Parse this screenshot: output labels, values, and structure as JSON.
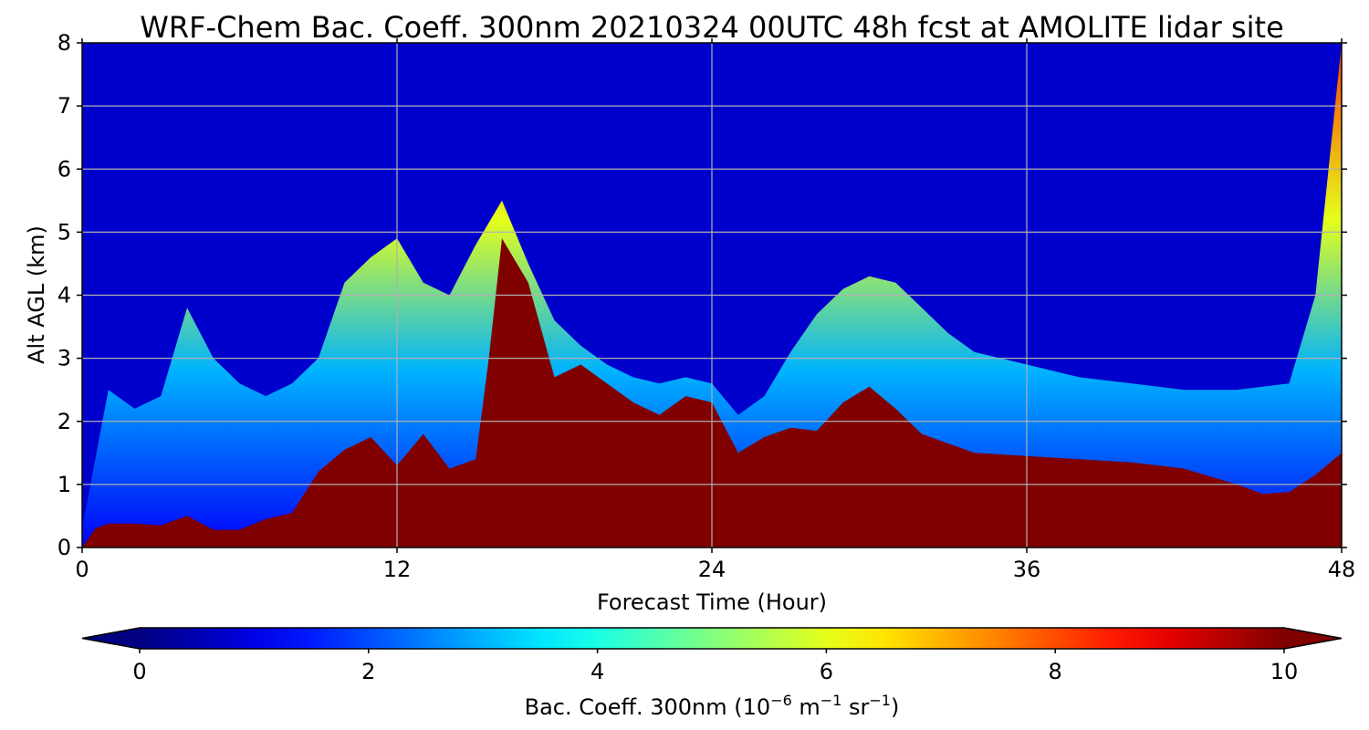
{
  "chart_data": {
    "type": "heatmap",
    "title": "WRF-Chem Bac. Coeff. 300nm  20210324 00UTC 48h fcst at AMOLITE lidar site",
    "xlabel": "Forecast Time (Hour)",
    "ylabel": "Alt AGL (km)",
    "xlim": [
      0,
      48
    ],
    "ylim": [
      0,
      8
    ],
    "x_ticks": [
      0,
      12,
      24,
      36,
      48
    ],
    "y_ticks": [
      0,
      1,
      2,
      3,
      4,
      5,
      6,
      7,
      8
    ],
    "grid": true,
    "colormap": "jet",
    "colorbar": {
      "orientation": "horizontal",
      "label_main": "Bac. Coeff. 300nm  (10",
      "label_exp1": "−6",
      "label_mid": " m",
      "label_exp2": "−1",
      "label_mid2": " sr",
      "label_exp3": "−1",
      "label_end": ")",
      "range": [
        0,
        10
      ],
      "ticks": [
        0,
        2,
        4,
        6,
        8,
        10
      ],
      "extend": "both"
    },
    "saturated_layer_top_km": [
      [
        0,
        0
      ],
      [
        0.5,
        0.3
      ],
      [
        1,
        0.38
      ],
      [
        2,
        0.38
      ],
      [
        3,
        0.35
      ],
      [
        4,
        0.5
      ],
      [
        5,
        0.28
      ],
      [
        6,
        0.28
      ],
      [
        7,
        0.45
      ],
      [
        8,
        0.55
      ],
      [
        9,
        1.2
      ],
      [
        10,
        1.55
      ],
      [
        11,
        1.75
      ],
      [
        12,
        1.3
      ],
      [
        13,
        1.8
      ],
      [
        14,
        1.25
      ],
      [
        15,
        1.4
      ],
      [
        15.5,
        3.0
      ],
      [
        16,
        4.9
      ],
      [
        17,
        4.2
      ],
      [
        18,
        2.7
      ],
      [
        19,
        2.9
      ],
      [
        20,
        2.6
      ],
      [
        21,
        2.3
      ],
      [
        22,
        2.1
      ],
      [
        23,
        2.4
      ],
      [
        24,
        2.3
      ],
      [
        25,
        1.5
      ],
      [
        26,
        1.75
      ],
      [
        27,
        1.9
      ],
      [
        28,
        1.85
      ],
      [
        29,
        2.3
      ],
      [
        30,
        2.55
      ],
      [
        31,
        2.2
      ],
      [
        32,
        1.8
      ],
      [
        34,
        1.5
      ],
      [
        36,
        1.45
      ],
      [
        38,
        1.4
      ],
      [
        40,
        1.35
      ],
      [
        42,
        1.25
      ],
      [
        44,
        1.0
      ],
      [
        45,
        0.85
      ],
      [
        46,
        0.88
      ],
      [
        47,
        1.15
      ],
      [
        48,
        1.5
      ]
    ],
    "aerosol_influence_top_km": [
      [
        0,
        0.3
      ],
      [
        1,
        2.5
      ],
      [
        2,
        2.2
      ],
      [
        3,
        2.4
      ],
      [
        4,
        3.8
      ],
      [
        5,
        3.0
      ],
      [
        6,
        2.6
      ],
      [
        7,
        2.4
      ],
      [
        8,
        2.6
      ],
      [
        9,
        3.0
      ],
      [
        10,
        4.2
      ],
      [
        11,
        4.6
      ],
      [
        12,
        4.9
      ],
      [
        13,
        4.2
      ],
      [
        14,
        4.0
      ],
      [
        15,
        4.8
      ],
      [
        16,
        5.5
      ],
      [
        17,
        4.5
      ],
      [
        18,
        3.6
      ],
      [
        19,
        3.2
      ],
      [
        20,
        2.9
      ],
      [
        21,
        2.7
      ],
      [
        22,
        2.6
      ],
      [
        23,
        2.7
      ],
      [
        24,
        2.6
      ],
      [
        25,
        2.1
      ],
      [
        26,
        2.4
      ],
      [
        27,
        3.1
      ],
      [
        28,
        3.7
      ],
      [
        29,
        4.1
      ],
      [
        30,
        4.3
      ],
      [
        31,
        4.2
      ],
      [
        32,
        3.8
      ],
      [
        33,
        3.4
      ],
      [
        34,
        3.1
      ],
      [
        36,
        2.9
      ],
      [
        38,
        2.7
      ],
      [
        40,
        2.6
      ],
      [
        42,
        2.5
      ],
      [
        44,
        2.5
      ],
      [
        46,
        2.6
      ],
      [
        47,
        4.0
      ],
      [
        48,
        8.0
      ]
    ]
  }
}
